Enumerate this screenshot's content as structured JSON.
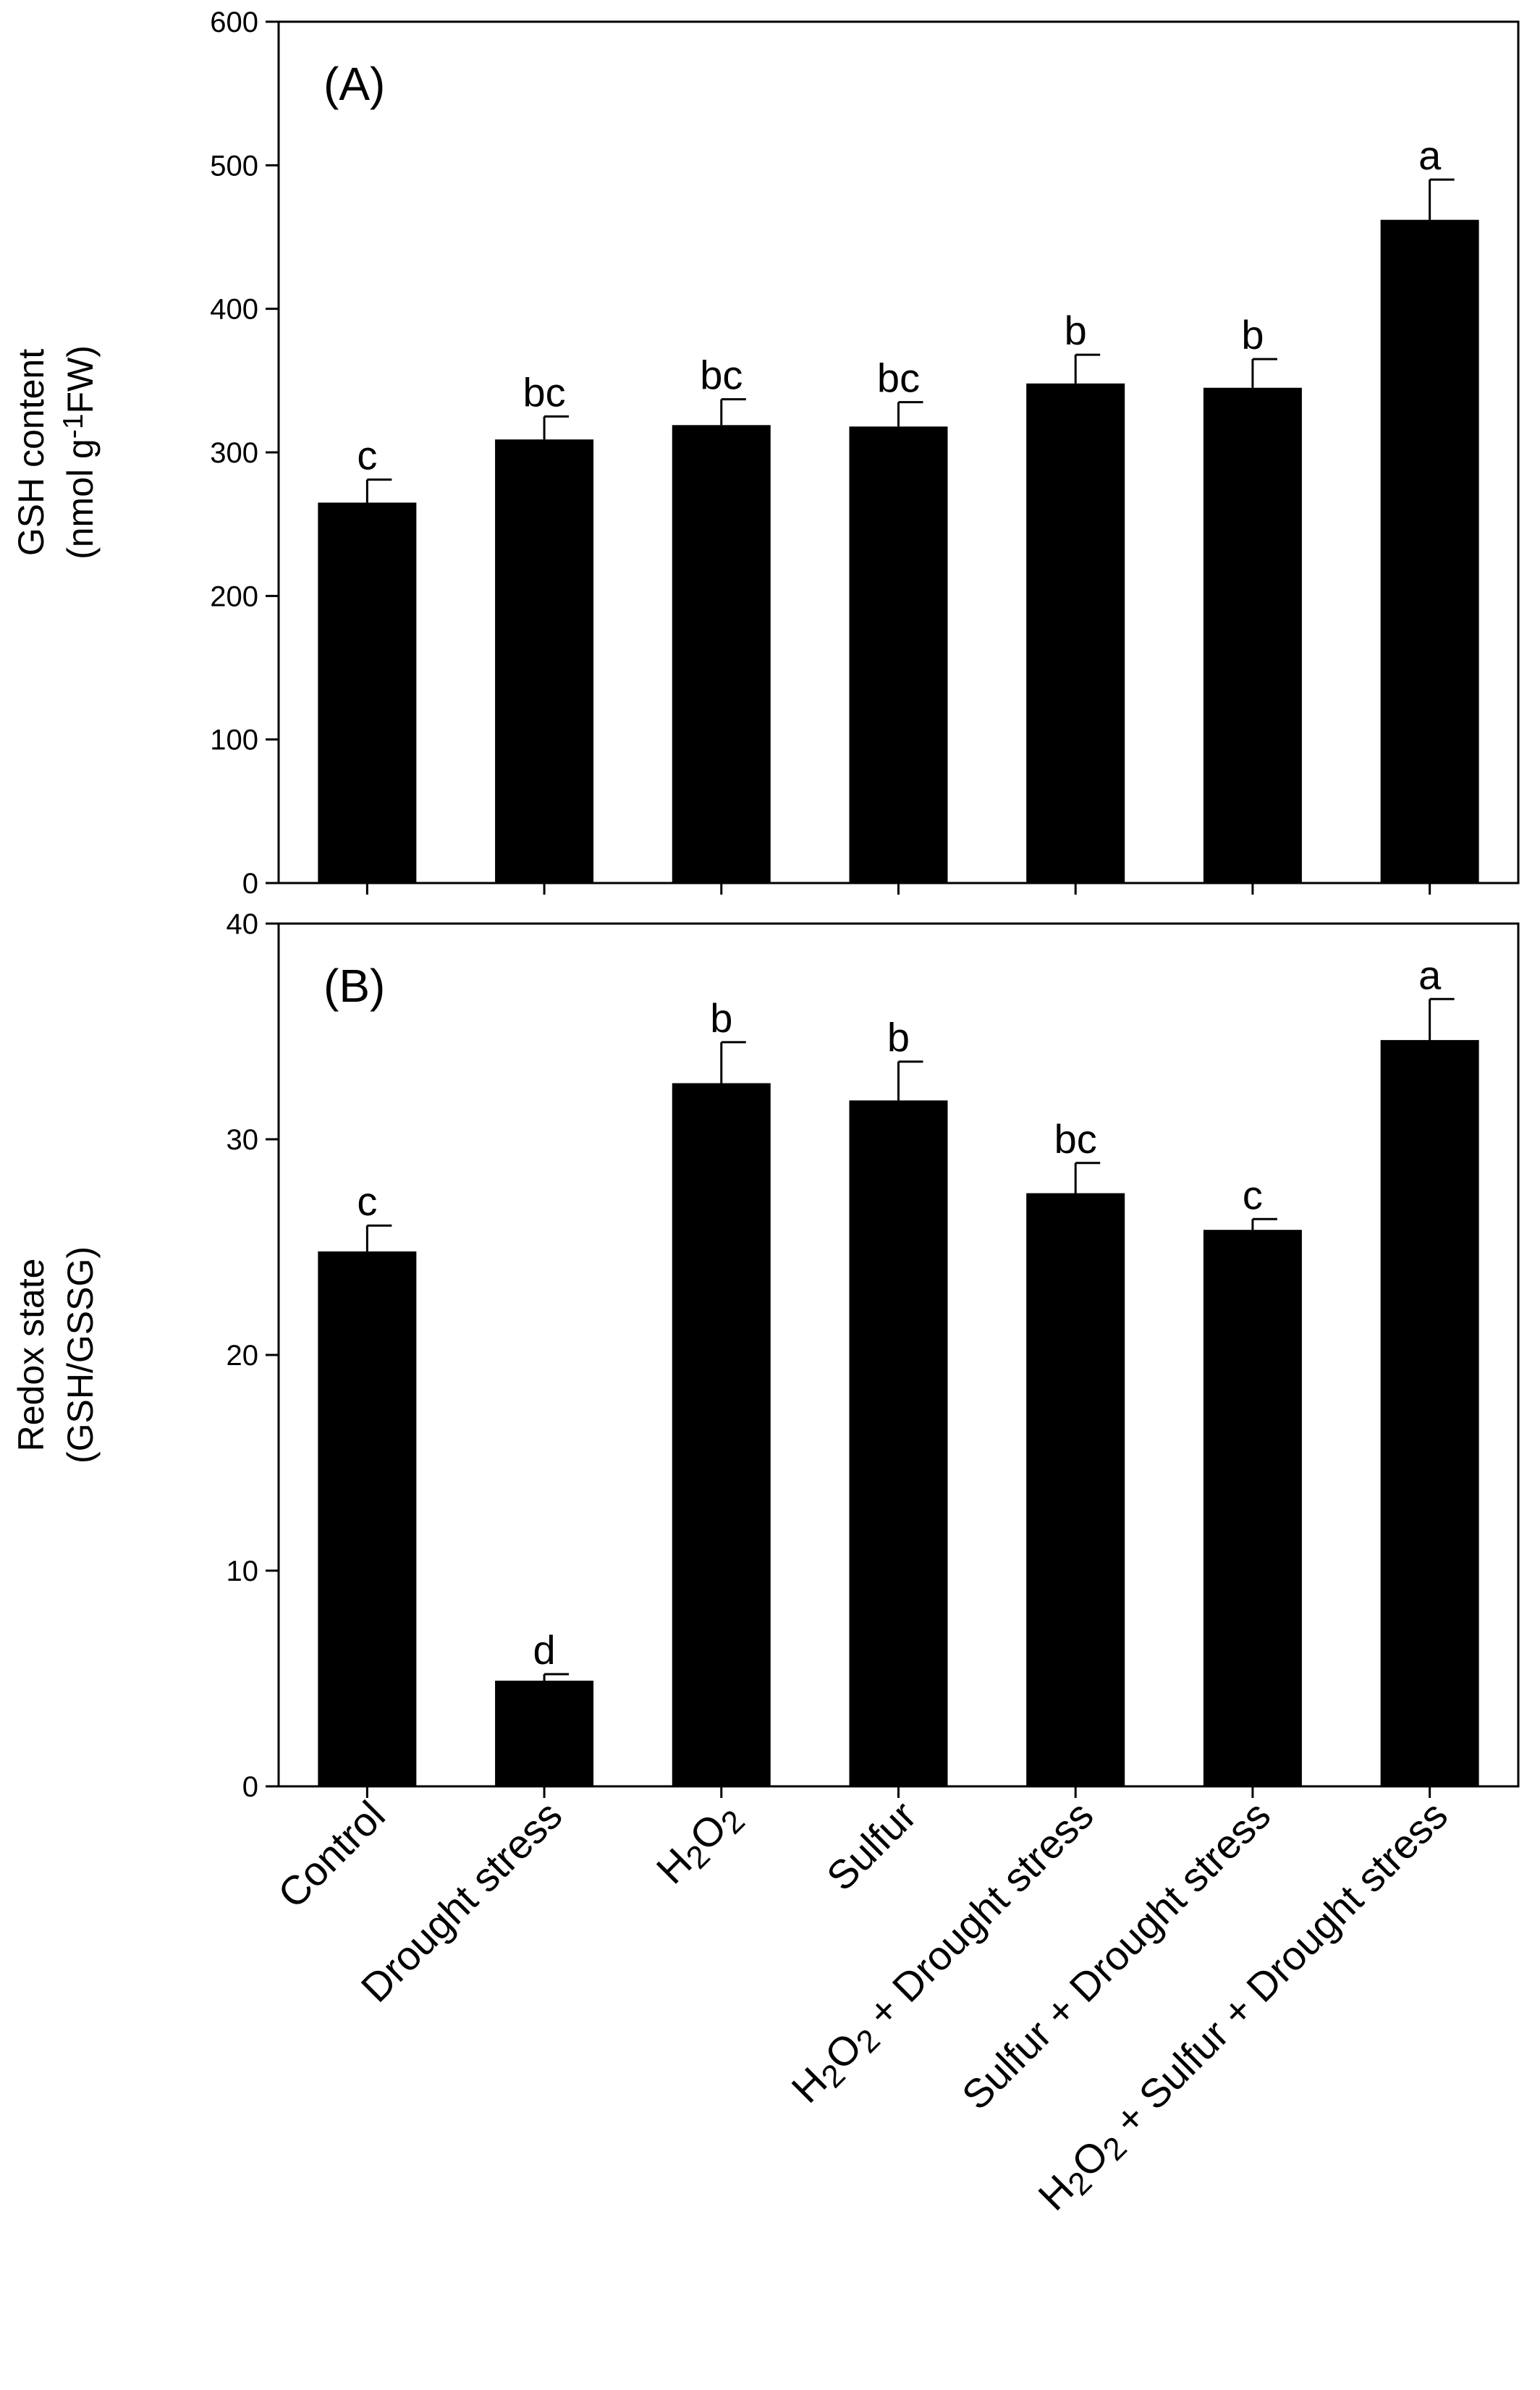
{
  "categories": [
    {
      "parts": [
        {
          "t": "Control"
        }
      ]
    },
    {
      "parts": [
        {
          "t": "Drought stress"
        }
      ]
    },
    {
      "parts": [
        {
          "t": "H"
        },
        {
          "t": "2",
          "sub": true
        },
        {
          "t": "O"
        },
        {
          "t": "2",
          "sub": true
        }
      ]
    },
    {
      "parts": [
        {
          "t": "Sulfur"
        }
      ]
    },
    {
      "parts": [
        {
          "t": "H"
        },
        {
          "t": "2",
          "sub": true
        },
        {
          "t": "O"
        },
        {
          "t": "2",
          "sub": true
        },
        {
          "t": " + Drought stress"
        }
      ]
    },
    {
      "parts": [
        {
          "t": "Sulfur + Drought stress"
        }
      ]
    },
    {
      "parts": [
        {
          "t": "H"
        },
        {
          "t": "2",
          "sub": true
        },
        {
          "t": "O"
        },
        {
          "t": "2",
          "sub": true
        },
        {
          "t": " + Sulfur + Drought stress"
        }
      ]
    }
  ],
  "chart_data": [
    {
      "type": "bar",
      "panel_label": "(A)",
      "ylabel_line1": "GSH content",
      "ylabel_line2_parts": [
        {
          "t": "(nmol g"
        },
        {
          "t": "-1",
          "sup": true
        },
        {
          "t": "FW)"
        }
      ],
      "ylim": [
        0,
        600
      ],
      "yticks": [
        0,
        100,
        200,
        300,
        400,
        500,
        600
      ],
      "values": [
        265,
        309,
        319,
        318,
        348,
        345,
        462
      ],
      "errors": [
        16,
        16,
        18,
        17,
        20,
        20,
        28
      ],
      "letters": [
        "c",
        "bc",
        "bc",
        "bc",
        "b",
        "b",
        "a"
      ],
      "bar_color": "#000000",
      "grid": false
    },
    {
      "type": "bar",
      "panel_label": "(B)",
      "ylabel_line1": "Redox state",
      "ylabel_line2": "(GSH/GSSG)",
      "ylim": [
        0,
        40
      ],
      "yticks": [
        0,
        10,
        20,
        30,
        40
      ],
      "values": [
        24.8,
        4.9,
        32.6,
        31.8,
        27.5,
        25.8,
        34.6
      ],
      "errors": [
        1.2,
        0.3,
        1.9,
        1.8,
        1.4,
        0.5,
        1.9
      ],
      "letters": [
        "c",
        "d",
        "b",
        "b",
        "bc",
        "c",
        "a"
      ],
      "bar_color": "#000000",
      "grid": false
    }
  ]
}
